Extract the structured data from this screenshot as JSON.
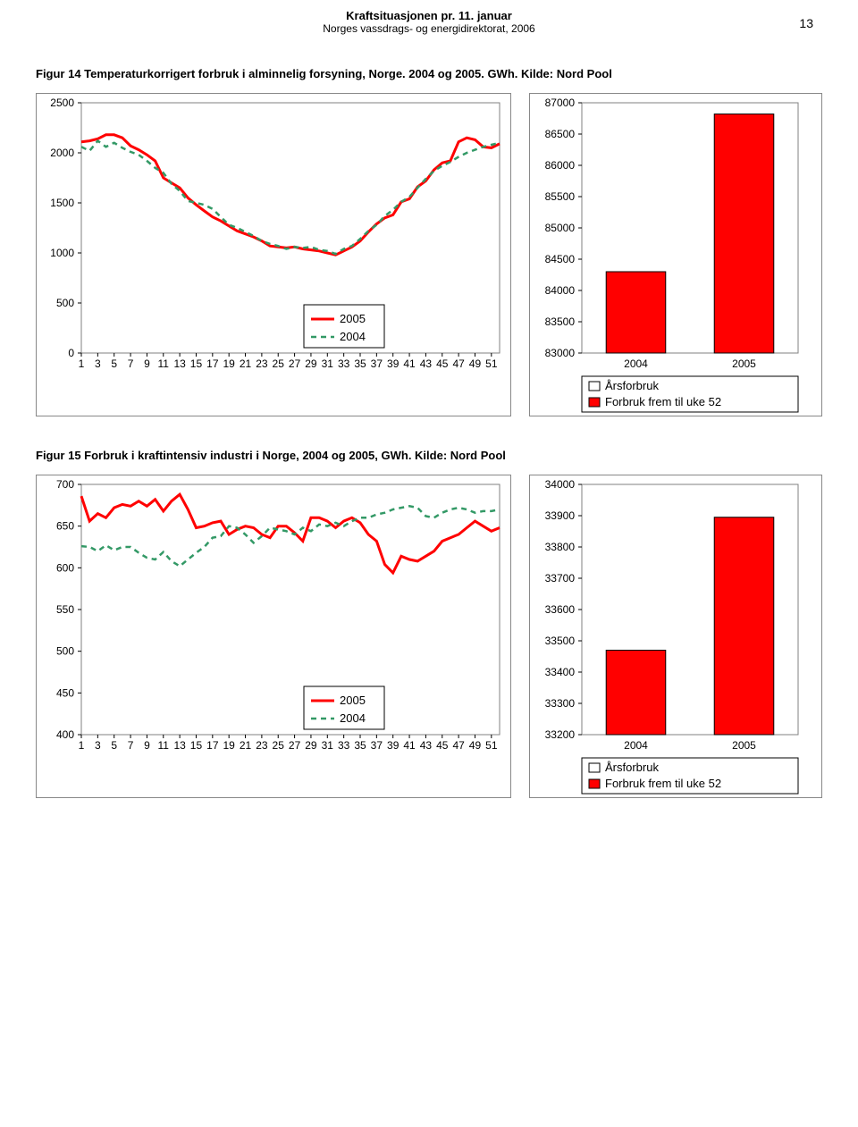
{
  "page_number": "13",
  "header": {
    "title": "Kraftsituasjonen pr. 11. januar",
    "subtitle": "Norges vassdrags- og energidirektorat, 2006"
  },
  "fig14": {
    "title": "Figur 14 Temperaturkorrigert forbruk i alminnelig forsyning, Norge. 2004 og 2005. GWh. Kilde: Nord Pool",
    "line_chart": {
      "type": "line",
      "x_ticks": [
        1,
        3,
        5,
        7,
        9,
        11,
        13,
        15,
        17,
        19,
        21,
        23,
        25,
        27,
        29,
        31,
        33,
        35,
        37,
        39,
        41,
        43,
        45,
        47,
        49,
        51
      ],
      "y_ticks": [
        0,
        500,
        1000,
        1500,
        2000,
        2500
      ],
      "ylim": [
        0,
        2500
      ],
      "xlim": [
        1,
        52
      ],
      "background_color": "#ffffff",
      "border_color": "#808080",
      "series": [
        {
          "name": "2005",
          "label": "2005",
          "color": "#ff0000",
          "dash": "none",
          "width": 3,
          "x": [
            1,
            2,
            3,
            4,
            5,
            6,
            7,
            8,
            9,
            10,
            11,
            12,
            13,
            14,
            15,
            16,
            17,
            18,
            19,
            20,
            21,
            22,
            23,
            24,
            25,
            26,
            27,
            28,
            29,
            30,
            31,
            32,
            33,
            34,
            35,
            36,
            37,
            38,
            39,
            40,
            41,
            42,
            43,
            44,
            45,
            46,
            47,
            48,
            49,
            50,
            51,
            52
          ],
          "y": [
            2110,
            2120,
            2140,
            2180,
            2180,
            2150,
            2070,
            2030,
            1980,
            1920,
            1750,
            1700,
            1650,
            1550,
            1480,
            1420,
            1360,
            1320,
            1270,
            1220,
            1190,
            1160,
            1120,
            1070,
            1060,
            1050,
            1060,
            1040,
            1030,
            1020,
            1000,
            980,
            1020,
            1060,
            1120,
            1210,
            1290,
            1350,
            1380,
            1510,
            1540,
            1660,
            1720,
            1830,
            1900,
            1920,
            2110,
            2150,
            2130,
            2060,
            2050,
            2090
          ]
        },
        {
          "name": "2004",
          "label": "2004",
          "color": "#339966",
          "dash": "6,5",
          "width": 2.5,
          "x": [
            1,
            2,
            3,
            4,
            5,
            6,
            7,
            8,
            9,
            10,
            11,
            12,
            13,
            14,
            15,
            16,
            17,
            18,
            19,
            20,
            21,
            22,
            23,
            24,
            25,
            26,
            27,
            28,
            29,
            30,
            31,
            32,
            33,
            34,
            35,
            36,
            37,
            38,
            39,
            40,
            41,
            42,
            43,
            44,
            45,
            46,
            47,
            48,
            49,
            50,
            51,
            52
          ],
          "y": [
            2060,
            2020,
            2120,
            2060,
            2100,
            2050,
            2010,
            1980,
            1920,
            1850,
            1800,
            1690,
            1620,
            1520,
            1500,
            1480,
            1440,
            1360,
            1280,
            1250,
            1210,
            1170,
            1120,
            1090,
            1070,
            1040,
            1060,
            1050,
            1060,
            1030,
            1020,
            990,
            1040,
            1070,
            1140,
            1220,
            1280,
            1370,
            1430,
            1510,
            1560,
            1650,
            1740,
            1820,
            1870,
            1910,
            1960,
            2000,
            2030,
            2060,
            2080,
            2100
          ]
        }
      ],
      "legend_position": "bottom-center"
    },
    "bar_chart": {
      "type": "bar",
      "categories": [
        "2004",
        "2005"
      ],
      "y_ticks": [
        83000,
        83500,
        84000,
        84500,
        85000,
        85500,
        86000,
        86500,
        87000
      ],
      "ylim": [
        83000,
        87000
      ],
      "bars": [
        {
          "label": "2004",
          "value": 84300,
          "color": "#ff0000",
          "border": "#000000"
        },
        {
          "label": "2005",
          "value": 86820,
          "color": "#ff0000",
          "border": "#000000"
        }
      ],
      "legend": {
        "items": [
          {
            "marker": "box-empty",
            "label": "Årsforbruk",
            "fill": "#ffffff",
            "border": "#000000"
          },
          {
            "marker": "box-fill",
            "label": "Forbruk frem til uke 52",
            "fill": "#ff0000",
            "border": "#000000"
          }
        ]
      }
    }
  },
  "fig15": {
    "title": "Figur 15 Forbruk i kraftintensiv industri i Norge, 2004 og 2005, GWh. Kilde: Nord Pool",
    "line_chart": {
      "type": "line",
      "x_ticks": [
        1,
        3,
        5,
        7,
        9,
        11,
        13,
        15,
        17,
        19,
        21,
        23,
        25,
        27,
        29,
        31,
        33,
        35,
        37,
        39,
        41,
        43,
        45,
        47,
        49,
        51
      ],
      "y_ticks": [
        400,
        450,
        500,
        550,
        600,
        650,
        700
      ],
      "ylim": [
        400,
        700
      ],
      "xlim": [
        1,
        52
      ],
      "series": [
        {
          "name": "2005",
          "label": "2005",
          "color": "#ff0000",
          "dash": "none",
          "width": 3,
          "x": [
            1,
            2,
            3,
            4,
            5,
            6,
            7,
            8,
            9,
            10,
            11,
            12,
            13,
            14,
            15,
            16,
            17,
            18,
            19,
            20,
            21,
            22,
            23,
            24,
            25,
            26,
            27,
            28,
            29,
            30,
            31,
            32,
            33,
            34,
            35,
            36,
            37,
            38,
            39,
            40,
            41,
            42,
            43,
            44,
            45,
            46,
            47,
            48,
            49,
            50,
            51,
            52
          ],
          "y": [
            686,
            656,
            665,
            660,
            672,
            676,
            674,
            680,
            674,
            682,
            668,
            680,
            688,
            670,
            648,
            650,
            654,
            656,
            640,
            646,
            650,
            648,
            640,
            636,
            650,
            650,
            642,
            632,
            660,
            660,
            656,
            648,
            656,
            660,
            654,
            640,
            632,
            604,
            594,
            614,
            610,
            608,
            614,
            620,
            632,
            636,
            640,
            648,
            656,
            650,
            644,
            648
          ]
        },
        {
          "name": "2004",
          "label": "2004",
          "color": "#339966",
          "dash": "6,5",
          "width": 2.5,
          "x": [
            1,
            2,
            3,
            4,
            5,
            6,
            7,
            8,
            9,
            10,
            11,
            12,
            13,
            14,
            15,
            16,
            17,
            18,
            19,
            20,
            21,
            22,
            23,
            24,
            25,
            26,
            27,
            28,
            29,
            30,
            31,
            32,
            33,
            34,
            35,
            36,
            37,
            38,
            39,
            40,
            41,
            42,
            43,
            44,
            45,
            46,
            47,
            48,
            49,
            50,
            51,
            52
          ],
          "y": [
            626,
            625,
            620,
            627,
            621,
            625,
            625,
            618,
            612,
            610,
            619,
            608,
            602,
            610,
            618,
            625,
            636,
            638,
            650,
            648,
            640,
            630,
            638,
            648,
            646,
            644,
            640,
            648,
            644,
            652,
            650,
            654,
            650,
            656,
            660,
            660,
            664,
            666,
            670,
            672,
            674,
            672,
            662,
            660,
            666,
            670,
            672,
            670,
            666,
            668,
            668,
            670
          ]
        }
      ],
      "legend_position": "bottom-center"
    },
    "bar_chart": {
      "type": "bar",
      "categories": [
        "2004",
        "2005"
      ],
      "y_ticks": [
        33200,
        33300,
        33400,
        33500,
        33600,
        33700,
        33800,
        33900,
        34000
      ],
      "ylim": [
        33200,
        34000
      ],
      "bars": [
        {
          "label": "2004",
          "value": 33470,
          "color": "#ff0000",
          "border": "#000000"
        },
        {
          "label": "2005",
          "value": 33895,
          "color": "#ff0000",
          "border": "#000000"
        }
      ],
      "legend": {
        "items": [
          {
            "marker": "box-empty",
            "label": "Årsforbruk",
            "fill": "#ffffff",
            "border": "#000000"
          },
          {
            "marker": "box-fill",
            "label": "Forbruk frem til uke 52",
            "fill": "#ff0000",
            "border": "#000000"
          }
        ]
      }
    }
  },
  "colors": {
    "series_2005": "#ff0000",
    "series_2004": "#339966",
    "bar_fill": "#ff0000",
    "bar_border": "#000000",
    "panel_border": "#808080",
    "text": "#000000",
    "background": "#ffffff"
  },
  "fonts": {
    "title_size_pt": 13,
    "tick_size_pt": 12,
    "legend_size_pt": 13
  }
}
